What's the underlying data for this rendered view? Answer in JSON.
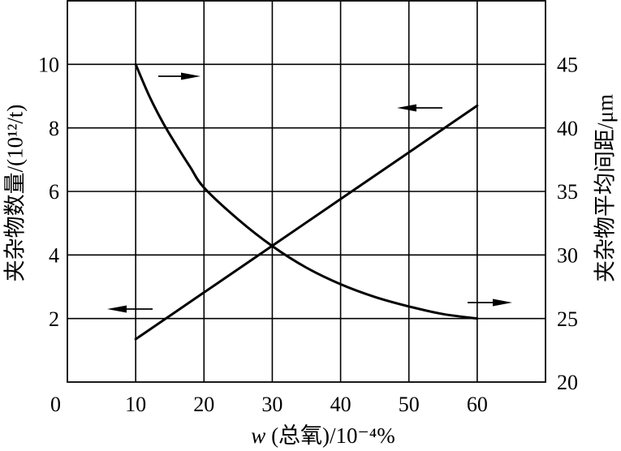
{
  "chart_data": {
    "type": "line",
    "xlabel": "w (总氧)/10⁻⁴%",
    "ylabel": "夹杂物数量/(10¹²/t)",
    "ylabel_right": "夹杂物平均间距/μm",
    "xlim": [
      0,
      70
    ],
    "ylim": [
      0,
      12
    ],
    "ylim_right": [
      20,
      50
    ],
    "x_ticks": [
      0,
      10,
      20,
      30,
      40,
      50,
      60
    ],
    "y_ticks": [
      2,
      4,
      6,
      8,
      10
    ],
    "y_ticks_right": [
      20,
      25,
      30,
      35,
      40,
      45
    ],
    "grid": true,
    "legend": "none",
    "series": [
      {
        "axis": "left",
        "x": [
          10,
          20,
          30,
          40,
          50,
          60
        ],
        "y": [
          1.35,
          2.82,
          4.29,
          5.76,
          7.23,
          8.7
        ]
      },
      {
        "axis": "right",
        "x": [
          10,
          12,
          14,
          16,
          18,
          20,
          25,
          30,
          35,
          40,
          45,
          50,
          55,
          60
        ],
        "y": [
          45,
          42.5,
          40.4,
          38.6,
          36.9,
          35.3,
          32.8,
          30.7,
          29.0,
          27.7,
          26.7,
          25.95,
          25.35,
          25.0
        ]
      }
    ]
  }
}
